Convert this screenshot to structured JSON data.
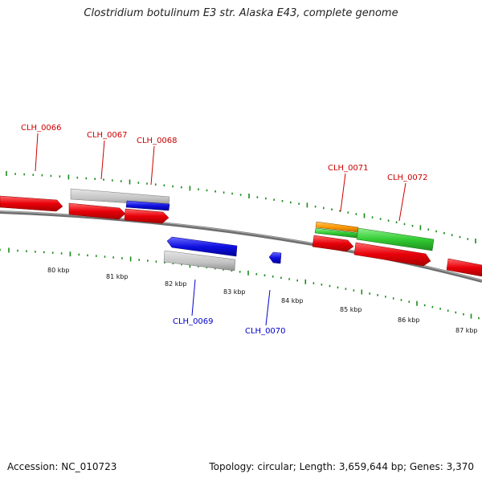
{
  "title": "Clostridium botulinum E3 str. Alaska E43, complete genome",
  "footer": {
    "accession": "Accession: NC_010723",
    "summary": "Topology: circular; Length: 3,659,644 bp; Genes: 3,370"
  },
  "colors": {
    "red": "#e8000a",
    "blue": "#1010e0",
    "gray": "#c0c0c0",
    "green": "#33cc33",
    "orange": "#ff9900",
    "backbone": "#808080",
    "ticks": "#1a8a1a",
    "label_red": "#cc0000",
    "label_blue": "#0000cc"
  },
  "scale": {
    "labels": [
      "80 kbp",
      "81 kbp",
      "82 kbp",
      "83 kbp",
      "84 kbp",
      "85 kbp",
      "86 kbp",
      "87 kbp"
    ]
  },
  "genes": [
    {
      "label": "CLH_0066",
      "color": "label_red"
    },
    {
      "label": "CLH_0067",
      "color": "label_red"
    },
    {
      "label": "CLH_0068",
      "color": "label_red"
    },
    {
      "label": "CLH_0069",
      "color": "label_blue"
    },
    {
      "label": "CLH_0070",
      "color": "label_blue"
    },
    {
      "label": "CLH_0071",
      "color": "label_red"
    },
    {
      "label": "CLH_0072",
      "color": "label_red"
    }
  ]
}
